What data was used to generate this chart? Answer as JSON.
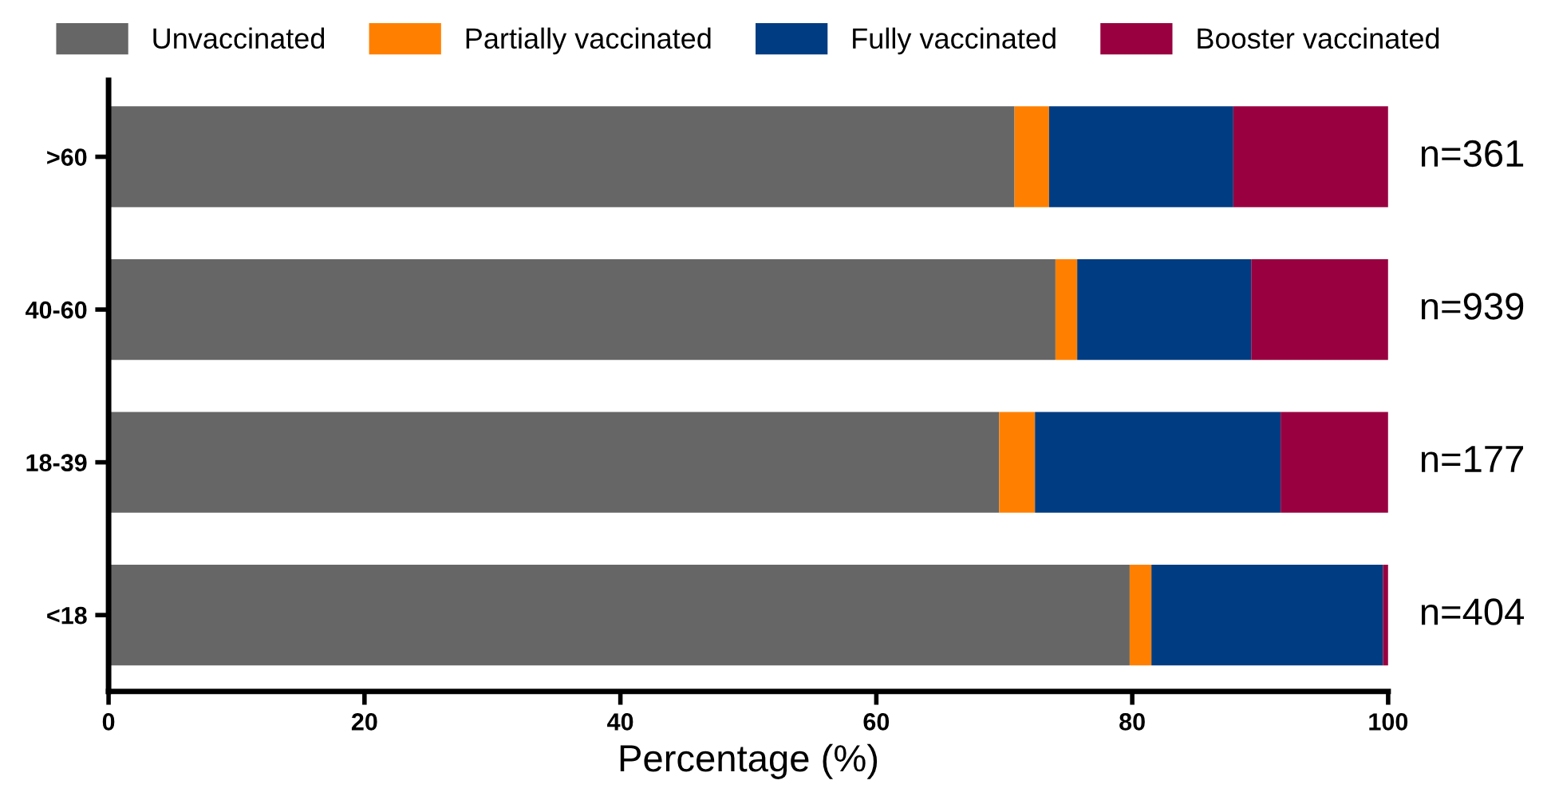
{
  "chart_data": {
    "type": "bar",
    "orientation": "horizontal",
    "stacked": true,
    "xlabel": "Percentage (%)",
    "categories": [
      ">60",
      "40-60",
      "18-39",
      "<18"
    ],
    "series": [
      {
        "name": "Unvaccinated",
        "color": "#666666",
        "values": [
          70.8,
          74.0,
          69.6,
          79.8
        ]
      },
      {
        "name": "Partially vaccinated",
        "color": "#ff8000",
        "values": [
          2.7,
          1.7,
          2.8,
          1.7
        ]
      },
      {
        "name": "Fully vaccinated",
        "color": "#003c82",
        "values": [
          14.4,
          13.6,
          19.2,
          18.1
        ]
      },
      {
        "name": "Booster vaccinated",
        "color": "#990040",
        "values": [
          12.1,
          10.7,
          8.4,
          0.4
        ]
      }
    ],
    "xlim": [
      0,
      100
    ],
    "xticks": [
      0,
      20,
      40,
      60,
      80,
      100
    ],
    "grid": false,
    "legend": "top",
    "annotations": [
      "n=361",
      "n=939",
      "n=177",
      "n=404"
    ]
  }
}
